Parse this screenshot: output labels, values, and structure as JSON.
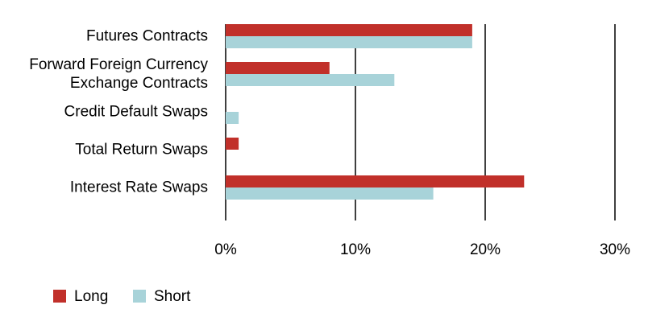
{
  "chart_data": {
    "type": "hbar",
    "categories": [
      "Futures Contracts",
      "Forward Foreign Currency\nExchange Contracts",
      "Credit Default Swaps",
      "Total Return Swaps",
      "Interest Rate Swaps"
    ],
    "series": [
      {
        "name": "Long",
        "color": "#c1302a",
        "values": [
          19,
          8,
          0,
          1,
          23
        ]
      },
      {
        "name": "Short",
        "color": "#a8d3d9",
        "values": [
          19,
          13,
          1,
          0,
          16
        ]
      }
    ],
    "xlim": [
      0,
      30
    ],
    "xticks": [
      {
        "value": 0,
        "label": "0%"
      },
      {
        "value": 10,
        "label": "10%"
      },
      {
        "value": 20,
        "label": "20%"
      },
      {
        "value": 30,
        "label": "30%"
      }
    ],
    "grid": true
  }
}
